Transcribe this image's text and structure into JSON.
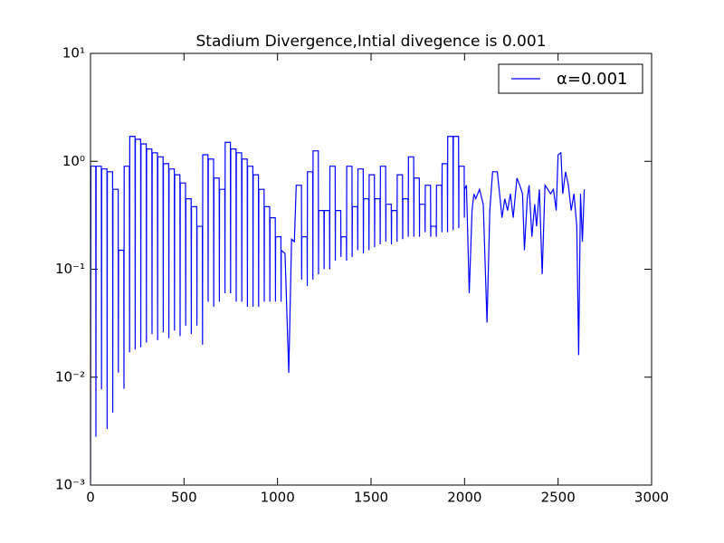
{
  "chart_data": {
    "type": "line",
    "title": "Stadium Divergence,Intial divegence is 0.001",
    "yscale": "log",
    "legend": "upper right",
    "xlim": [
      0,
      3000
    ],
    "xticks": [
      0,
      500,
      1000,
      1500,
      2000,
      2500,
      3000
    ],
    "ylim": [
      0.001,
      10
    ],
    "yticks": [
      {
        "value": 0.001,
        "label": "10⁻³"
      },
      {
        "value": 0.01,
        "label": "10⁻²"
      },
      {
        "value": 0.1,
        "label": "10⁻¹"
      },
      {
        "value": 1,
        "label": "10⁰"
      },
      {
        "value": 10,
        "label": "10¹"
      }
    ],
    "x": [
      0,
      2,
      28,
      29,
      30,
      58,
      59,
      60,
      88,
      89,
      90,
      118,
      119,
      120,
      148,
      149,
      150,
      178,
      179,
      180,
      208,
      209,
      210,
      238,
      239,
      240,
      268,
      269,
      270,
      298,
      299,
      300,
      328,
      329,
      330,
      358,
      359,
      360,
      388,
      389,
      390,
      418,
      419,
      420,
      448,
      449,
      450,
      478,
      479,
      480,
      508,
      509,
      510,
      538,
      539,
      540,
      568,
      569,
      570,
      598,
      599,
      600,
      628,
      629,
      630,
      658,
      659,
      660,
      688,
      689,
      690,
      718,
      719,
      720,
      748,
      749,
      750,
      778,
      779,
      780,
      808,
      809,
      810,
      838,
      839,
      840,
      868,
      869,
      870,
      898,
      899,
      900,
      928,
      929,
      930,
      958,
      959,
      960,
      988,
      989,
      990,
      1018,
      1019,
      1020,
      1040,
      1060,
      1075,
      1090,
      1100,
      1128,
      1129,
      1130,
      1158,
      1159,
      1160,
      1188,
      1189,
      1190,
      1218,
      1219,
      1220,
      1248,
      1249,
      1250,
      1278,
      1279,
      1280,
      1308,
      1309,
      1310,
      1338,
      1339,
      1340,
      1368,
      1369,
      1370,
      1398,
      1399,
      1400,
      1428,
      1429,
      1430,
      1458,
      1459,
      1460,
      1488,
      1489,
      1490,
      1518,
      1519,
      1520,
      1548,
      1549,
      1550,
      1578,
      1579,
      1580,
      1608,
      1609,
      1610,
      1638,
      1639,
      1640,
      1668,
      1669,
      1670,
      1698,
      1699,
      1700,
      1728,
      1729,
      1730,
      1758,
      1759,
      1760,
      1788,
      1789,
      1790,
      1818,
      1819,
      1820,
      1848,
      1849,
      1850,
      1878,
      1879,
      1880,
      1908,
      1909,
      1910,
      1938,
      1939,
      1940,
      1968,
      1969,
      1970,
      1998,
      1999,
      2000,
      2010,
      2025,
      2040,
      2050,
      2060,
      2080,
      2100,
      2120,
      2135,
      2150,
      2175,
      2190,
      2200,
      2215,
      2230,
      2245,
      2260,
      2280,
      2295,
      2310,
      2320,
      2335,
      2345,
      2360,
      2375,
      2385,
      2400,
      2415,
      2430,
      2445,
      2460,
      2475,
      2490,
      2500,
      2515,
      2525,
      2540,
      2555,
      2570,
      2585,
      2600,
      2610,
      2620,
      2630,
      2640
    ],
    "series": [
      {
        "name": "α=0.001",
        "color": "#0000ff",
        "values": [
          0.001,
          0.9,
          0.9,
          0.0028,
          0.9,
          0.9,
          0.0077,
          0.85,
          0.85,
          0.0033,
          0.8,
          0.8,
          0.0047,
          0.55,
          0.55,
          0.011,
          0.15,
          0.15,
          0.0078,
          0.9,
          0.9,
          0.017,
          1.7,
          1.7,
          0.018,
          1.6,
          1.6,
          0.019,
          1.45,
          1.45,
          0.021,
          1.3,
          1.3,
          0.025,
          1.2,
          1.2,
          0.022,
          1.1,
          1.1,
          0.026,
          0.95,
          0.95,
          0.023,
          0.85,
          0.85,
          0.027,
          0.75,
          0.75,
          0.024,
          0.63,
          0.63,
          0.03,
          0.45,
          0.45,
          0.025,
          0.38,
          0.38,
          0.03,
          0.25,
          0.25,
          0.02,
          1.15,
          1.15,
          0.05,
          1.05,
          1.05,
          0.045,
          0.7,
          0.7,
          0.05,
          0.55,
          0.55,
          0.06,
          1.5,
          1.5,
          0.06,
          1.3,
          1.3,
          0.05,
          1.2,
          1.2,
          0.05,
          1.05,
          1.05,
          0.045,
          0.9,
          0.9,
          0.045,
          0.75,
          0.75,
          0.045,
          0.55,
          0.55,
          0.05,
          0.38,
          0.38,
          0.05,
          0.3,
          0.3,
          0.05,
          0.2,
          0.2,
          0.05,
          0.15,
          0.14,
          0.011,
          0.19,
          0.18,
          0.6,
          0.6,
          0.08,
          0.2,
          0.2,
          0.07,
          0.8,
          0.8,
          0.08,
          1.25,
          1.25,
          0.09,
          0.35,
          0.35,
          0.1,
          0.35,
          0.35,
          0.1,
          0.9,
          0.9,
          0.12,
          0.35,
          0.35,
          0.13,
          0.2,
          0.2,
          0.12,
          0.9,
          0.9,
          0.13,
          0.38,
          0.38,
          0.15,
          0.85,
          0.85,
          0.14,
          0.45,
          0.45,
          0.15,
          0.75,
          0.75,
          0.16,
          0.45,
          0.45,
          0.17,
          0.9,
          0.9,
          0.18,
          0.4,
          0.4,
          0.17,
          0.35,
          0.35,
          0.18,
          0.75,
          0.75,
          0.19,
          0.45,
          0.45,
          0.2,
          1.1,
          1.1,
          0.2,
          0.7,
          0.7,
          0.2,
          0.4,
          0.4,
          0.22,
          0.6,
          0.6,
          0.2,
          0.25,
          0.25,
          0.2,
          0.6,
          0.6,
          0.22,
          0.95,
          0.95,
          0.22,
          1.7,
          1.7,
          0.23,
          1.7,
          1.7,
          0.24,
          0.9,
          0.9,
          0.3,
          0.55,
          0.6,
          0.06,
          0.35,
          0.5,
          0.45,
          0.55,
          0.4,
          0.032,
          0.35,
          0.8,
          0.8,
          0.45,
          0.3,
          0.45,
          0.35,
          0.5,
          0.3,
          0.7,
          0.6,
          0.5,
          0.15,
          0.45,
          0.6,
          0.2,
          0.4,
          0.25,
          0.55,
          0.09,
          0.6,
          0.55,
          0.5,
          0.55,
          0.35,
          1.15,
          1.2,
          0.5,
          0.8,
          0.6,
          0.35,
          0.5,
          0.25,
          0.016,
          0.5,
          0.18,
          0.55
        ]
      }
    ]
  }
}
